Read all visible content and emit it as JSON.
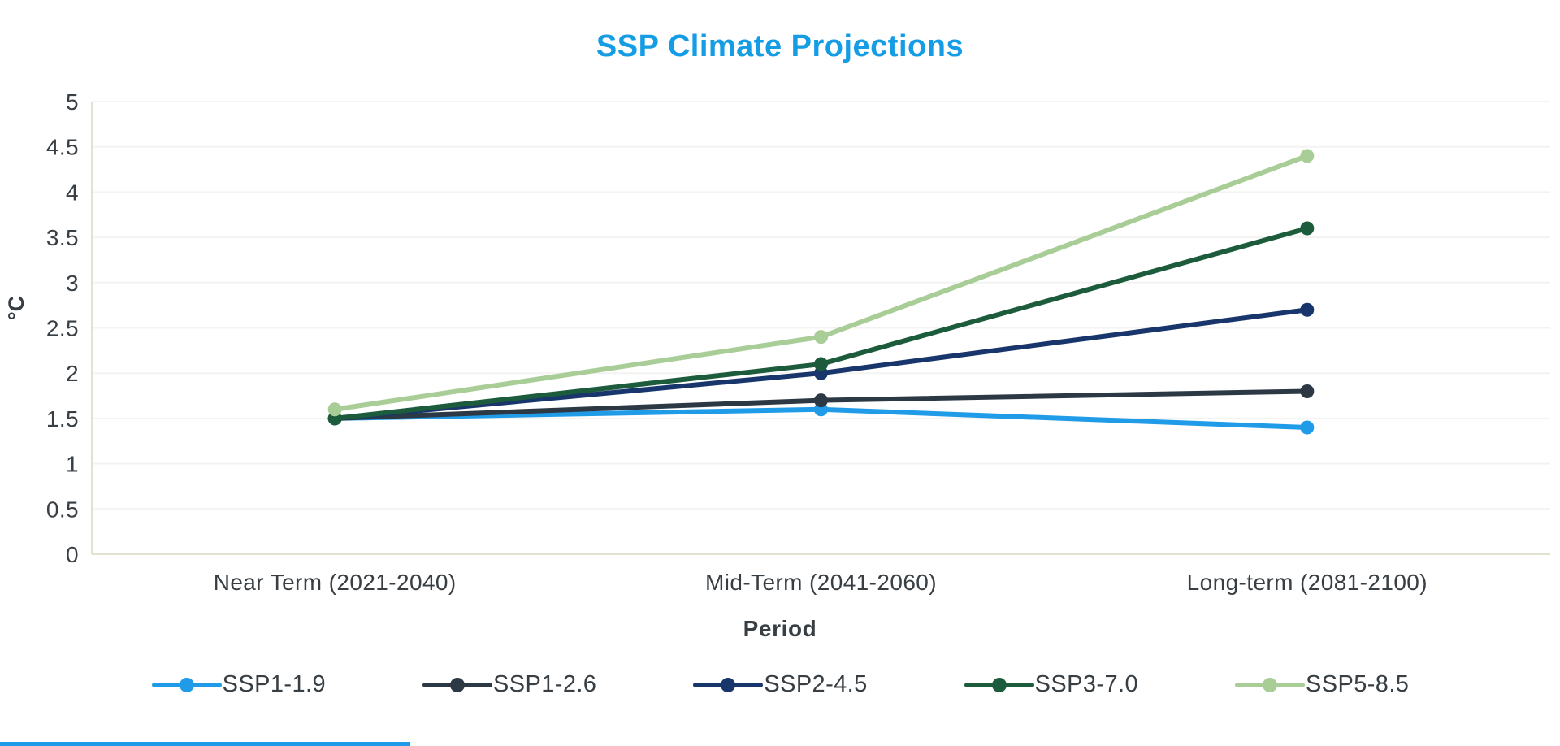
{
  "chart_data": {
    "type": "line",
    "title": "SSP Climate Projections",
    "title_color": "#149CE5",
    "xlabel": "Period",
    "ylabel": "°C",
    "categories": [
      "Near Term (2021-2040)",
      "Mid-Term (2041-2060)",
      "Long-term (2081-2100)"
    ],
    "series": [
      {
        "name": "SSP1-1.9",
        "color": "#209BE8",
        "values": [
          1.5,
          1.6,
          1.4
        ]
      },
      {
        "name": "SSP1-2.6",
        "color": "#2C3945",
        "values": [
          1.5,
          1.7,
          1.8
        ]
      },
      {
        "name": "SSP2-4.5",
        "color": "#18366B",
        "values": [
          1.5,
          2.0,
          2.7
        ]
      },
      {
        "name": "SSP3-7.0",
        "color": "#1C5C3C",
        "values": [
          1.5,
          2.1,
          3.6
        ]
      },
      {
        "name": "SSP5-8.5",
        "color": "#A9CD96",
        "values": [
          1.6,
          2.4,
          4.4
        ]
      }
    ],
    "ylim": [
      0,
      5
    ],
    "ytick_step": 0.5,
    "yticks": [
      "0",
      "0.5",
      "1",
      "1.5",
      "2",
      "2.5",
      "3",
      "3.5",
      "4",
      "4.5",
      "5"
    ],
    "grid": true,
    "legend_position": "bottom"
  },
  "colors": {
    "grid_line": "#F3F3F1",
    "axis_line": "#E3E1D2",
    "text": "#373F45",
    "bottom_strip": "#1E9BE8"
  }
}
